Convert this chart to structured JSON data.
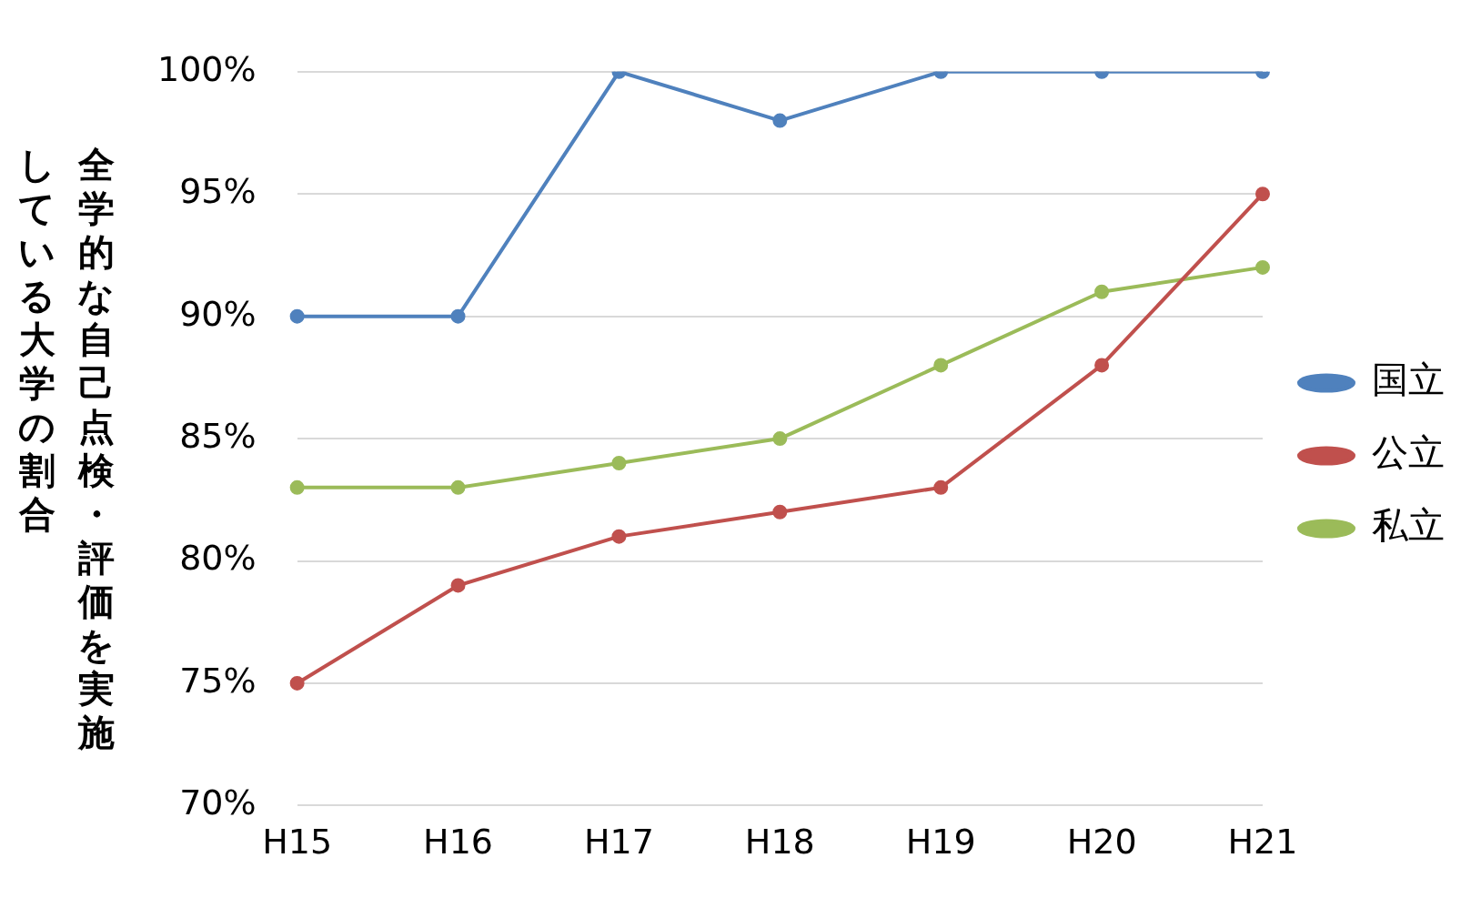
{
  "chart_data": {
    "type": "line",
    "ylabel": "全学的な自己点検・評価を実施している大学の割合",
    "categories": [
      "H15",
      "H16",
      "H17",
      "H18",
      "H19",
      "H20",
      "H21"
    ],
    "series": [
      {
        "name": "国立",
        "color": "#4f81bd",
        "values": [
          90,
          90,
          100,
          98,
          100,
          100,
          100
        ]
      },
      {
        "name": "公立",
        "color": "#c0504d",
        "values": [
          75,
          79,
          81,
          82,
          83,
          88,
          95
        ]
      },
      {
        "name": "私立",
        "color": "#9bbb59",
        "values": [
          83,
          83,
          84,
          85,
          88,
          91,
          92
        ]
      }
    ],
    "ylim": [
      70,
      100
    ],
    "yticks": [
      {
        "value": 70,
        "label": "70%"
      },
      {
        "value": 75,
        "label": "75%"
      },
      {
        "value": 80,
        "label": "80%"
      },
      {
        "value": 85,
        "label": "85%"
      },
      {
        "value": 90,
        "label": "90%"
      },
      {
        "value": 95,
        "label": "95%"
      },
      {
        "value": 100,
        "label": "100%"
      }
    ],
    "grid": "y",
    "legend": "right",
    "marker": "circle",
    "line_style": "solid"
  }
}
